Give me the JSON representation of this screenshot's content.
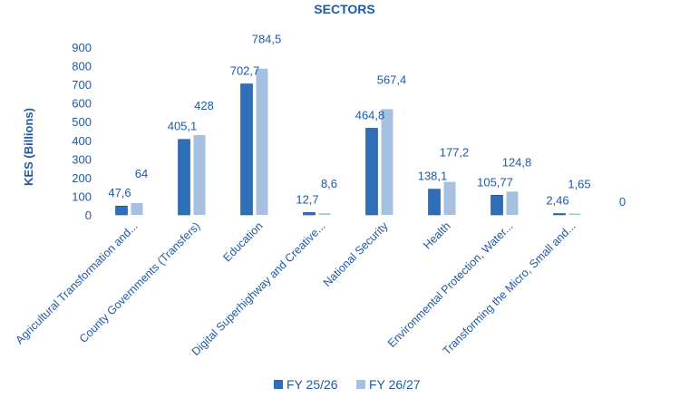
{
  "chart_data": {
    "type": "bar",
    "title": "SECTORS",
    "xlabel": "",
    "ylabel": "KES (Billions)",
    "ylim": [
      0,
      900
    ],
    "yticks": [
      "0",
      "100",
      "200",
      "300",
      "400",
      "500",
      "600",
      "700",
      "800",
      "900"
    ],
    "grid": false,
    "legend_position": "bottom",
    "categories": [
      "Agricultural Transformation and...",
      "County Governments (Transfers)",
      "Education",
      "Digital Superhighway and Creative...",
      "National Security",
      "Health",
      "Environmental Protection, Water...",
      "Transforming the Micro, Small and..."
    ],
    "series": [
      {
        "name": "FY 25/26",
        "color": "#2e6fb7",
        "values": [
          47.6,
          405.1,
          702.7,
          12.7,
          464.8,
          138.1,
          105.77,
          2.46
        ],
        "labels": [
          "47,6",
          "405,1",
          "702,7",
          "12,7",
          "464,8",
          "138,1",
          "105,77",
          "2,46"
        ]
      },
      {
        "name": "FY 26/27",
        "color": "#a6c0e0",
        "values": [
          64,
          428,
          784.5,
          8.6,
          567.4,
          177.2,
          124.8,
          1.65
        ],
        "labels": [
          "64",
          "428",
          "784,5",
          "8,6",
          "567,4",
          "177,2",
          "124,8",
          "1,65"
        ]
      }
    ],
    "extra_labels": [
      "0"
    ]
  }
}
